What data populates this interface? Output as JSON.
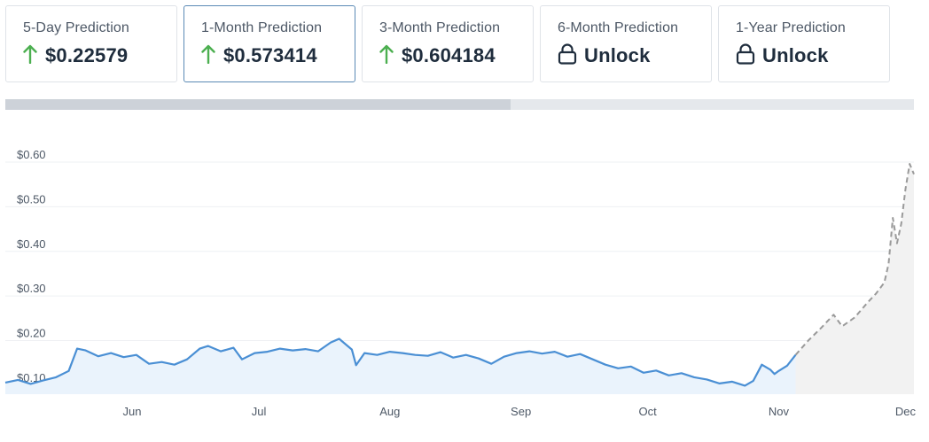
{
  "cards": [
    {
      "label": "5-Day Prediction",
      "value": "$0.22579",
      "icon": "arrow-up-icon",
      "locked": false,
      "active": false
    },
    {
      "label": "1-Month Prediction",
      "value": "$0.573414",
      "icon": "arrow-up-icon",
      "locked": false,
      "active": true
    },
    {
      "label": "3-Month Prediction",
      "value": "$0.604184",
      "icon": "arrow-up-icon",
      "locked": false,
      "active": false
    },
    {
      "label": "6-Month Prediction",
      "value": "Unlock",
      "icon": "lock-icon",
      "locked": true,
      "active": false
    },
    {
      "label": "1-Year Prediction",
      "value": "Unlock",
      "icon": "lock-icon",
      "locked": true,
      "active": false
    }
  ],
  "progress": {
    "fraction": 0.556
  },
  "colors": {
    "up_arrow": "#4caf50",
    "actual_line": "#4a8fd4",
    "actual_fill": "#eaf3fc",
    "forecast_line": "#9a9a9a",
    "forecast_fill": "#f2f2f2"
  },
  "chart_data": {
    "type": "line",
    "title": "",
    "xlabel": "",
    "ylabel": "",
    "ylim": [
      0.08,
      0.6
    ],
    "y_ticks": [
      "$0.60",
      "$0.50",
      "$0.40",
      "$0.30",
      "$0.20",
      "$0.10"
    ],
    "y_tick_values": [
      0.6,
      0.5,
      0.4,
      0.3,
      0.2,
      0.1
    ],
    "x_ticks": [
      "Jun",
      "Jul",
      "Aug",
      "Sep",
      "Oct",
      "Nov",
      "Dec"
    ],
    "x_tick_dates": [
      "2024-06-01",
      "2024-07-01",
      "2024-08-01",
      "2024-09-01",
      "2024-10-01",
      "2024-11-01",
      "2024-12-01"
    ],
    "x_range": [
      "2024-05-02",
      "2024-12-03"
    ],
    "grid": "horizontal",
    "series": [
      {
        "style": "solid",
        "points": [
          [
            "2024-05-02",
            0.106
          ],
          [
            "2024-05-05",
            0.112
          ],
          [
            "2024-05-08",
            0.103
          ],
          [
            "2024-05-11",
            0.111
          ],
          [
            "2024-05-14",
            0.118
          ],
          [
            "2024-05-17",
            0.132
          ],
          [
            "2024-05-19",
            0.182
          ],
          [
            "2024-05-21",
            0.178
          ],
          [
            "2024-05-24",
            0.165
          ],
          [
            "2024-05-27",
            0.172
          ],
          [
            "2024-05-30",
            0.163
          ],
          [
            "2024-06-02",
            0.168
          ],
          [
            "2024-06-05",
            0.148
          ],
          [
            "2024-06-08",
            0.152
          ],
          [
            "2024-06-11",
            0.146
          ],
          [
            "2024-06-14",
            0.158
          ],
          [
            "2024-06-17",
            0.182
          ],
          [
            "2024-06-19",
            0.188
          ],
          [
            "2024-06-22",
            0.176
          ],
          [
            "2024-06-25",
            0.184
          ],
          [
            "2024-06-27",
            0.158
          ],
          [
            "2024-06-30",
            0.172
          ],
          [
            "2024-07-03",
            0.175
          ],
          [
            "2024-07-06",
            0.182
          ],
          [
            "2024-07-09",
            0.178
          ],
          [
            "2024-07-12",
            0.181
          ],
          [
            "2024-07-15",
            0.176
          ],
          [
            "2024-07-18",
            0.196
          ],
          [
            "2024-07-20",
            0.204
          ],
          [
            "2024-07-23",
            0.18
          ],
          [
            "2024-07-24",
            0.145
          ],
          [
            "2024-07-26",
            0.172
          ],
          [
            "2024-07-29",
            0.168
          ],
          [
            "2024-08-01",
            0.175
          ],
          [
            "2024-08-04",
            0.172
          ],
          [
            "2024-08-07",
            0.168
          ],
          [
            "2024-08-10",
            0.166
          ],
          [
            "2024-08-13",
            0.174
          ],
          [
            "2024-08-16",
            0.162
          ],
          [
            "2024-08-19",
            0.168
          ],
          [
            "2024-08-22",
            0.16
          ],
          [
            "2024-08-25",
            0.148
          ],
          [
            "2024-08-28",
            0.164
          ],
          [
            "2024-08-31",
            0.172
          ],
          [
            "2024-09-03",
            0.176
          ],
          [
            "2024-09-06",
            0.171
          ],
          [
            "2024-09-09",
            0.175
          ],
          [
            "2024-09-12",
            0.164
          ],
          [
            "2024-09-15",
            0.17
          ],
          [
            "2024-09-18",
            0.158
          ],
          [
            "2024-09-21",
            0.146
          ],
          [
            "2024-09-24",
            0.138
          ],
          [
            "2024-09-27",
            0.142
          ],
          [
            "2024-09-30",
            0.128
          ],
          [
            "2024-10-03",
            0.133
          ],
          [
            "2024-10-06",
            0.122
          ],
          [
            "2024-10-09",
            0.127
          ],
          [
            "2024-10-12",
            0.118
          ],
          [
            "2024-10-15",
            0.113
          ],
          [
            "2024-10-18",
            0.104
          ],
          [
            "2024-10-21",
            0.108
          ],
          [
            "2024-10-24",
            0.099
          ],
          [
            "2024-10-26",
            0.11
          ],
          [
            "2024-10-28",
            0.146
          ],
          [
            "2024-10-30",
            0.135
          ],
          [
            "2024-10-31",
            0.125
          ],
          [
            "2024-11-01",
            0.132
          ],
          [
            "2024-11-03",
            0.144
          ],
          [
            "2024-11-05",
            0.168
          ]
        ]
      },
      {
        "style": "dashed",
        "points": [
          [
            "2024-11-05",
            0.168
          ],
          [
            "2024-11-08",
            0.2
          ],
          [
            "2024-11-11",
            0.228
          ],
          [
            "2024-11-14",
            0.258
          ],
          [
            "2024-11-16",
            0.232
          ],
          [
            "2024-11-19",
            0.252
          ],
          [
            "2024-11-22",
            0.285
          ],
          [
            "2024-11-24",
            0.305
          ],
          [
            "2024-11-26",
            0.33
          ],
          [
            "2024-11-27",
            0.372
          ],
          [
            "2024-11-28",
            0.475
          ],
          [
            "2024-11-29",
            0.418
          ],
          [
            "2024-11-30",
            0.462
          ],
          [
            "2024-12-01",
            0.54
          ],
          [
            "2024-12-02",
            0.596
          ],
          [
            "2024-12-03",
            0.573
          ]
        ]
      }
    ]
  }
}
